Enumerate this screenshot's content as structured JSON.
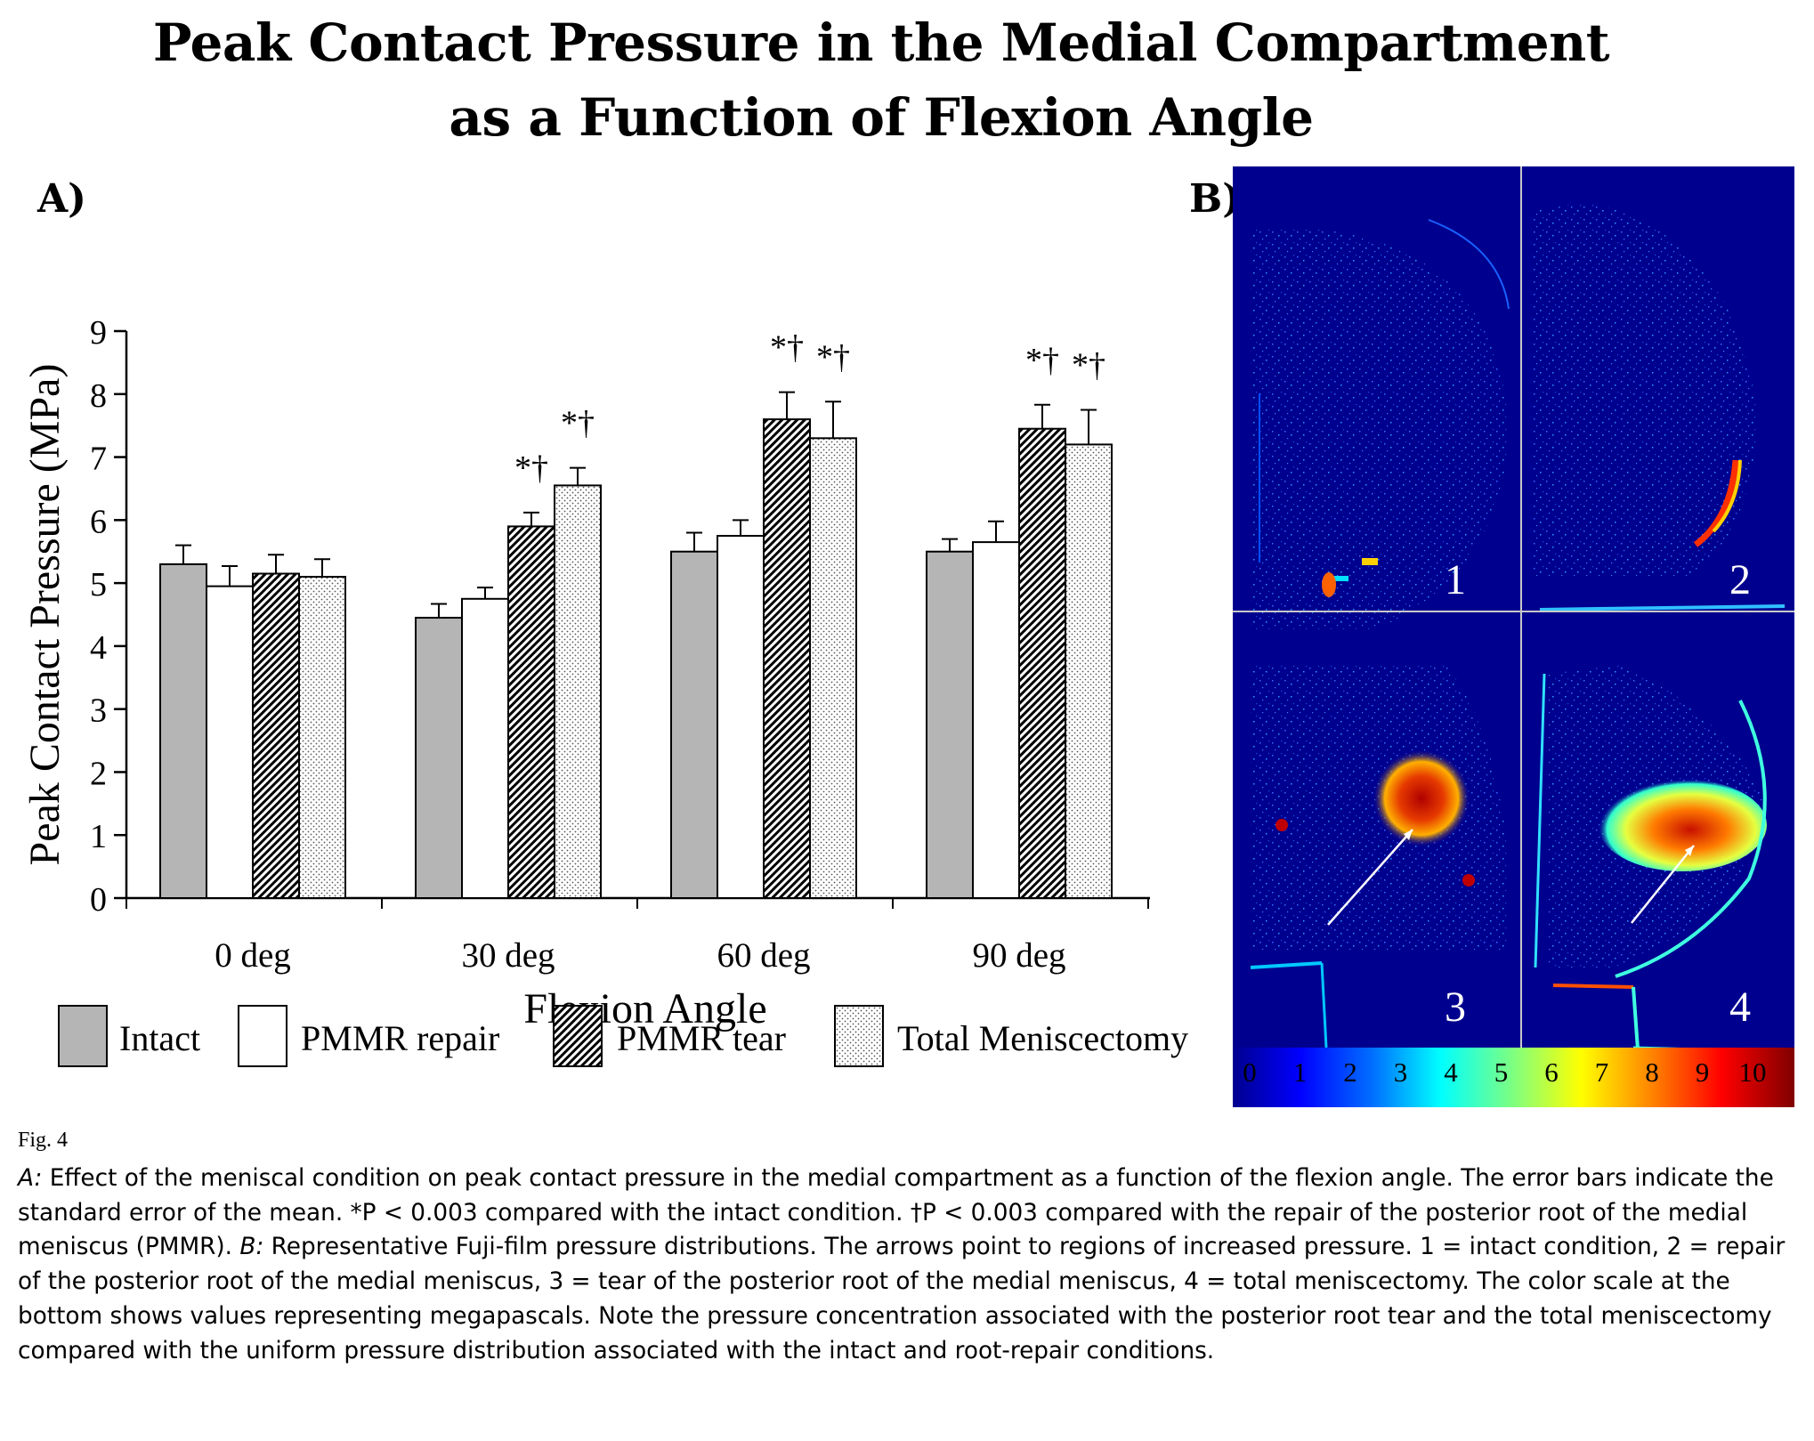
{
  "title": {
    "line1": "Peak Contact Pressure in the Medial Compartment",
    "line2": "as a Function of Flexion Angle"
  },
  "panel_a_label": "A)",
  "panel_b_label": "B)",
  "chart_data": {
    "type": "bar",
    "title": "Peak Contact Pressure in the Medial Compartment as a Function of Flexion Angle",
    "xlabel": "Flexion Angle",
    "ylabel": "Peak Contact Pressure (MPa)",
    "ylim": [
      0,
      9
    ],
    "yticks": [
      "0",
      "1",
      "2",
      "3",
      "4",
      "5",
      "6",
      "7",
      "8",
      "9"
    ],
    "categories": [
      "0 deg",
      "30 deg",
      "60 deg",
      "90 deg"
    ],
    "series": [
      {
        "name": "Intact",
        "pattern": "solid-gray",
        "values": [
          5.3,
          4.45,
          5.5,
          5.5
        ],
        "errors": [
          0.3,
          0.22,
          0.3,
          0.2
        ]
      },
      {
        "name": "PMMR repair",
        "pattern": "white",
        "values": [
          4.95,
          4.75,
          5.75,
          5.65
        ],
        "errors": [
          0.32,
          0.18,
          0.25,
          0.33
        ]
      },
      {
        "name": "PMMR tear",
        "pattern": "hatched",
        "values": [
          5.15,
          5.9,
          7.6,
          7.45
        ],
        "errors": [
          0.3,
          0.22,
          0.43,
          0.38
        ]
      },
      {
        "name": "Total Meniscectomy",
        "pattern": "dotted",
        "values": [
          5.1,
          6.55,
          7.3,
          7.2
        ],
        "errors": [
          0.28,
          0.28,
          0.58,
          0.55
        ]
      }
    ],
    "annotations": [
      {
        "category": "30 deg",
        "series": "PMMR tear",
        "text": "*†"
      },
      {
        "category": "30 deg",
        "series": "Total Meniscectomy",
        "text": "*†"
      },
      {
        "category": "60 deg",
        "series": "PMMR tear",
        "text": "*†"
      },
      {
        "category": "60 deg",
        "series": "Total Meniscectomy",
        "text": "*†"
      },
      {
        "category": "90 deg",
        "series": "PMMR tear",
        "text": "*†"
      },
      {
        "category": "90 deg",
        "series": "Total Meniscectomy",
        "text": "*†"
      }
    ],
    "legend": "bottom"
  },
  "panel_b": {
    "quadrant_labels": [
      "1",
      "2",
      "3",
      "4"
    ],
    "colorbar_ticks": [
      "0",
      "1",
      "2",
      "3",
      "4",
      "5",
      "6",
      "7",
      "8",
      "9",
      "10"
    ],
    "colors": {
      "background": "#00008f",
      "divider": "#c8c8c8"
    }
  },
  "figure_label": "Fig. 4",
  "caption": {
    "a_label": "A:",
    "a_text": " Effect of the meniscal condition on peak contact pressure in the medial compartment as a function of the flexion angle. The error bars indicate the standard error of the mean. *P < 0.003 compared with the intact condition. †P < 0.003 compared with the repair of the posterior root of the medial meniscus (PMMR). ",
    "b_label": "B:",
    "b_text": " Representative Fuji-film pressure distributions. The arrows point to regions of increased pressure. 1 = intact condition, 2 = repair of the posterior root of the medial meniscus, 3 = tear of the posterior root of the medial meniscus, 4 = total meniscectomy. The color scale at the bottom shows values representing megapascals. Note the pressure concentration associated with the posterior root tear and the total meniscectomy compared with the uniform pressure distribution associated with the intact and root-repair conditions."
  }
}
